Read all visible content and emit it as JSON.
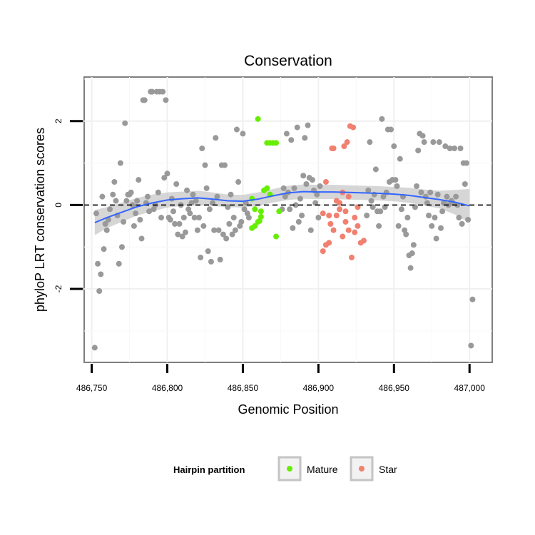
{
  "chart_data": {
    "type": "scatter",
    "title": "Conservation",
    "xlabel": "Genomic Position",
    "ylabel": "phyloP LRT conservation scores",
    "xlim": [
      486745,
      487015
    ],
    "ylim": [
      -3.75,
      3.05
    ],
    "x_ticks": [
      486750,
      486800,
      486850,
      486900,
      486950,
      487000
    ],
    "x_tick_labels": [
      "486,750",
      "486,800",
      "486,850",
      "486,900",
      "486,950",
      "487,000"
    ],
    "y_ticks": [
      -2,
      0,
      2
    ],
    "y_tick_labels": [
      "-2",
      "0",
      "2"
    ],
    "grid": true,
    "reference_line": {
      "y": 0,
      "style": "dashed"
    },
    "legend": {
      "title": "Hairpin partition",
      "position": "bottom",
      "entries": [
        {
          "label": "Mature",
          "color": "#66ee00"
        },
        {
          "label": "Star",
          "color": "#f08070"
        }
      ]
    },
    "colors": {
      "other": "#999999",
      "Mature": "#66ee00",
      "Star": "#f08070",
      "smooth": "#3366ff",
      "band": "#c8c8c8"
    },
    "series": [
      {
        "name": "Mature",
        "color": "#66ee00",
        "points": [
          [
            486860,
            2.05
          ],
          [
            486856,
            -0.55
          ],
          [
            486858,
            -0.5
          ],
          [
            486860,
            -0.4
          ],
          [
            486861,
            -0.38
          ],
          [
            486862,
            -0.28
          ],
          [
            486856,
            0.15
          ],
          [
            486858,
            -0.1
          ],
          [
            486862,
            -0.15
          ],
          [
            486864,
            0.35
          ],
          [
            486866,
            0.4
          ],
          [
            486868,
            0.25
          ],
          [
            486870,
            1.48
          ],
          [
            486872,
            1.48
          ],
          [
            486866,
            1.48
          ],
          [
            486868,
            1.48
          ],
          [
            486872,
            -0.75
          ],
          [
            486874,
            -0.15
          ]
        ]
      },
      {
        "name": "Star",
        "color": "#f08070",
        "points": [
          [
            486903,
            -1.1
          ],
          [
            486905,
            -0.95
          ],
          [
            486907,
            -0.9
          ],
          [
            486908,
            -0.45
          ],
          [
            486910,
            -0.6
          ],
          [
            486912,
            -0.25
          ],
          [
            486914,
            -0.1
          ],
          [
            486916,
            -0.75
          ],
          [
            486918,
            -0.4
          ],
          [
            486920,
            -0.6
          ],
          [
            486922,
            -1.25
          ],
          [
            486924,
            -0.65
          ],
          [
            486926,
            -0.5
          ],
          [
            486928,
            -0.9
          ],
          [
            486930,
            -0.85
          ],
          [
            486909,
            1.35
          ],
          [
            486910,
            1.35
          ],
          [
            486917,
            1.4
          ],
          [
            486919,
            1.5
          ],
          [
            486921,
            1.88
          ],
          [
            486923,
            1.85
          ],
          [
            486903,
            -0.2
          ],
          [
            486905,
            0.55
          ],
          [
            486907,
            -0.25
          ],
          [
            486912,
            0.1
          ],
          [
            486914,
            0.05
          ],
          [
            486916,
            0.3
          ],
          [
            486918,
            -0.15
          ],
          [
            486920,
            0.2
          ],
          [
            486924,
            -0.3
          ],
          [
            486926,
            -0.05
          ]
        ]
      }
    ],
    "other_points": [
      [
        486752,
        -3.4
      ],
      [
        486753,
        -0.2
      ],
      [
        486754,
        -1.4
      ],
      [
        486755,
        -2.05
      ],
      [
        486756,
        -1.65
      ],
      [
        486757,
        0.2
      ],
      [
        486758,
        -1.05
      ],
      [
        486759,
        -0.45
      ],
      [
        486760,
        -0.6
      ],
      [
        486761,
        -0.35
      ],
      [
        486762,
        -0.1
      ],
      [
        486764,
        0.25
      ],
      [
        486765,
        0.55
      ],
      [
        486766,
        0.1
      ],
      [
        486767,
        -0.25
      ],
      [
        486768,
        -1.4
      ],
      [
        486769,
        1.0
      ],
      [
        486770,
        -1.0
      ],
      [
        486771,
        -0.4
      ],
      [
        486772,
        1.95
      ],
      [
        486773,
        0.1
      ],
      [
        486774,
        0.25
      ],
      [
        486775,
        0.25
      ],
      [
        486776,
        0.3
      ],
      [
        486777,
        0.0
      ],
      [
        486778,
        -0.5
      ],
      [
        486779,
        -0.2
      ],
      [
        486780,
        0.1
      ],
      [
        486781,
        0.6
      ],
      [
        486782,
        -0.35
      ],
      [
        486783,
        -0.8
      ],
      [
        486784,
        2.5
      ],
      [
        486785,
        2.5
      ],
      [
        486786,
        0.05
      ],
      [
        486787,
        0.2
      ],
      [
        486788,
        -0.15
      ],
      [
        486789,
        2.7
      ],
      [
        486790,
        2.7
      ],
      [
        486791,
        -0.1
      ],
      [
        486792,
        0.0
      ],
      [
        486793,
        2.7
      ],
      [
        486794,
        0.3
      ],
      [
        486795,
        2.7
      ],
      [
        486796,
        -0.3
      ],
      [
        486797,
        2.7
      ],
      [
        486798,
        0.65
      ],
      [
        486799,
        2.5
      ],
      [
        486800,
        0.75
      ],
      [
        486801,
        -0.3
      ],
      [
        486802,
        -0.35
      ],
      [
        486803,
        0.15
      ],
      [
        486804,
        -0.15
      ],
      [
        486805,
        -0.45
      ],
      [
        486806,
        0.5
      ],
      [
        486807,
        -0.7
      ],
      [
        486808,
        -0.45
      ],
      [
        486809,
        0.0
      ],
      [
        486810,
        -0.75
      ],
      [
        486811,
        -0.3
      ],
      [
        486812,
        -0.65
      ],
      [
        486813,
        0.35
      ],
      [
        486814,
        -0.1
      ],
      [
        486815,
        -0.2
      ],
      [
        486816,
        0.05
      ],
      [
        486817,
        0.25
      ],
      [
        486818,
        -0.3
      ],
      [
        486819,
        0.1
      ],
      [
        486820,
        -0.6
      ],
      [
        486821,
        -0.3
      ],
      [
        486822,
        -1.25
      ],
      [
        486823,
        1.35
      ],
      [
        486824,
        -0.5
      ],
      [
        486825,
        0.95
      ],
      [
        486826,
        0.4
      ],
      [
        486827,
        -1.1
      ],
      [
        486828,
        -0.1
      ],
      [
        486829,
        -1.35
      ],
      [
        486830,
        0.05
      ],
      [
        486831,
        -0.6
      ],
      [
        486832,
        1.6
      ],
      [
        486833,
        0.2
      ],
      [
        486834,
        -0.6
      ],
      [
        486835,
        -1.3
      ],
      [
        486836,
        0.95
      ],
      [
        486837,
        -0.7
      ],
      [
        486838,
        0.95
      ],
      [
        486839,
        -0.8
      ],
      [
        486840,
        -0.05
      ],
      [
        486841,
        -0.45
      ],
      [
        486842,
        0.25
      ],
      [
        486843,
        -0.7
      ],
      [
        486844,
        -0.3
      ],
      [
        486845,
        -0.6
      ],
      [
        486846,
        1.8
      ],
      [
        486847,
        0.55
      ],
      [
        486848,
        -0.5
      ],
      [
        486849,
        -0.4
      ],
      [
        486850,
        1.7
      ],
      [
        486851,
        -0.1
      ],
      [
        486852,
        0.05
      ],
      [
        486853,
        -0.2
      ],
      [
        486854,
        -0.3
      ],
      [
        486876,
        -0.1
      ],
      [
        486877,
        0.4
      ],
      [
        486878,
        0.2
      ],
      [
        486879,
        1.7
      ],
      [
        486880,
        0.3
      ],
      [
        486881,
        -0.1
      ],
      [
        486882,
        1.55
      ],
      [
        486883,
        -0.55
      ],
      [
        486884,
        0.4
      ],
      [
        486885,
        0.0
      ],
      [
        486886,
        1.85
      ],
      [
        486887,
        -0.4
      ],
      [
        486888,
        0.15
      ],
      [
        486889,
        -0.25
      ],
      [
        486890,
        0.7
      ],
      [
        486891,
        1.6
      ],
      [
        486892,
        0.5
      ],
      [
        486893,
        1.9
      ],
      [
        486894,
        0.65
      ],
      [
        486895,
        -0.6
      ],
      [
        486896,
        0.6
      ],
      [
        486897,
        0.35
      ],
      [
        486898,
        0.05
      ],
      [
        486899,
        0.25
      ],
      [
        486900,
        -0.3
      ],
      [
        486901,
        0.45
      ],
      [
        486932,
        -0.25
      ],
      [
        486933,
        0.35
      ],
      [
        486934,
        1.5
      ],
      [
        486935,
        0.1
      ],
      [
        486936,
        -0.05
      ],
      [
        486937,
        0.25
      ],
      [
        486938,
        0.85
      ],
      [
        486939,
        -0.15
      ],
      [
        486940,
        -0.5
      ],
      [
        486941,
        -0.15
      ],
      [
        486942,
        2.05
      ],
      [
        486943,
        0.2
      ],
      [
        486944,
        -0.05
      ],
      [
        486945,
        0.3
      ],
      [
        486946,
        1.8
      ],
      [
        486947,
        0.55
      ],
      [
        486948,
        1.8
      ],
      [
        486949,
        0.6
      ],
      [
        486950,
        1.4
      ],
      [
        486951,
        0.6
      ],
      [
        486952,
        0.45
      ],
      [
        486953,
        -0.5
      ],
      [
        486954,
        1.1
      ],
      [
        486955,
        -0.1
      ],
      [
        486956,
        0.2
      ],
      [
        486957,
        -0.6
      ],
      [
        486958,
        -0.7
      ],
      [
        486959,
        -0.3
      ],
      [
        486960,
        -1.2
      ],
      [
        486961,
        -1.5
      ],
      [
        486962,
        -1.15
      ],
      [
        486963,
        -0.95
      ],
      [
        486964,
        -0.05
      ],
      [
        486965,
        0.45
      ],
      [
        486966,
        1.3
      ],
      [
        486967,
        1.7
      ],
      [
        486968,
        0.3
      ],
      [
        486969,
        1.65
      ],
      [
        486970,
        1.5
      ],
      [
        486971,
        0.2
      ],
      [
        486972,
        0.05
      ],
      [
        486973,
        -0.25
      ],
      [
        486974,
        0.3
      ],
      [
        486975,
        -0.5
      ],
      [
        486976,
        1.5
      ],
      [
        486977,
        -0.3
      ],
      [
        486978,
        -0.8
      ],
      [
        486979,
        0.25
      ],
      [
        486980,
        1.5
      ],
      [
        486981,
        -0.55
      ],
      [
        486982,
        -0.15
      ],
      [
        486983,
        0.05
      ],
      [
        486984,
        1.4
      ],
      [
        486985,
        0.2
      ],
      [
        486986,
        0.0
      ],
      [
        486987,
        1.35
      ],
      [
        486988,
        0.1
      ],
      [
        486989,
        0.05
      ],
      [
        486990,
        1.35
      ],
      [
        486991,
        0.2
      ],
      [
        486992,
        0.0
      ],
      [
        486993,
        -0.3
      ],
      [
        486994,
        1.35
      ],
      [
        486995,
        -0.45
      ],
      [
        486996,
        1.0
      ],
      [
        486997,
        0.5
      ],
      [
        486998,
        1.0
      ],
      [
        486999,
        -0.35
      ],
      [
        487001,
        -3.35
      ],
      [
        487002,
        -2.25
      ]
    ],
    "smooth_line": {
      "x": [
        486752,
        486760,
        486770,
        486780,
        486790,
        486800,
        486810,
        486820,
        486830,
        486840,
        486850,
        486860,
        486870,
        486880,
        486890,
        486900,
        486910,
        486920,
        486930,
        486940,
        486950,
        486960,
        486970,
        486980,
        486990,
        487000
      ],
      "y": [
        -0.42,
        -0.3,
        -0.17,
        -0.04,
        0.05,
        0.12,
        0.15,
        0.17,
        0.14,
        0.1,
        0.09,
        0.14,
        0.22,
        0.29,
        0.32,
        0.31,
        0.31,
        0.3,
        0.29,
        0.28,
        0.26,
        0.23,
        0.18,
        0.13,
        0.07,
        -0.02
      ],
      "lower": [
        -0.72,
        -0.55,
        -0.4,
        -0.25,
        -0.15,
        -0.06,
        -0.02,
        0.0,
        -0.02,
        -0.05,
        -0.06,
        -0.02,
        0.06,
        0.12,
        0.15,
        0.14,
        0.14,
        0.13,
        0.12,
        0.11,
        0.09,
        0.05,
        -0.01,
        -0.08,
        -0.22,
        -0.42
      ],
      "upper": [
        -0.12,
        -0.05,
        0.06,
        0.17,
        0.25,
        0.3,
        0.32,
        0.34,
        0.3,
        0.25,
        0.24,
        0.3,
        0.38,
        0.46,
        0.49,
        0.48,
        0.48,
        0.47,
        0.46,
        0.45,
        0.43,
        0.41,
        0.37,
        0.34,
        0.36,
        0.38
      ]
    }
  }
}
